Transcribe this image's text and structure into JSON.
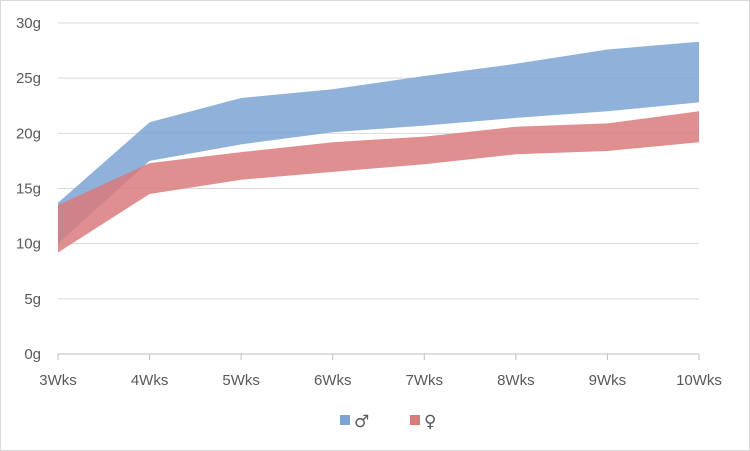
{
  "chart_data": {
    "type": "area",
    "categories": [
      "3Wks",
      "4Wks",
      "5Wks",
      "6Wks",
      "7Wks",
      "8Wks",
      "9Wks",
      "10Wks"
    ],
    "ylim": [
      0,
      30
    ],
    "ystep": 5,
    "yunit": "g",
    "grid": true,
    "legend_position": "bottom",
    "series": [
      {
        "name": "♂",
        "color": "#7ba3d4",
        "lower": [
          10.0,
          17.5,
          19.0,
          20.1,
          20.7,
          21.4,
          22.0,
          22.8
        ],
        "upper": [
          13.7,
          21.0,
          23.2,
          24.0,
          25.2,
          26.3,
          27.6,
          28.3
        ]
      },
      {
        "name": "♀",
        "color": "#d97b7b",
        "lower": [
          9.2,
          14.5,
          15.8,
          16.5,
          17.2,
          18.1,
          18.4,
          19.2
        ],
        "upper": [
          13.5,
          17.3,
          18.3,
          19.2,
          19.7,
          20.6,
          20.9,
          22.0
        ]
      }
    ]
  }
}
